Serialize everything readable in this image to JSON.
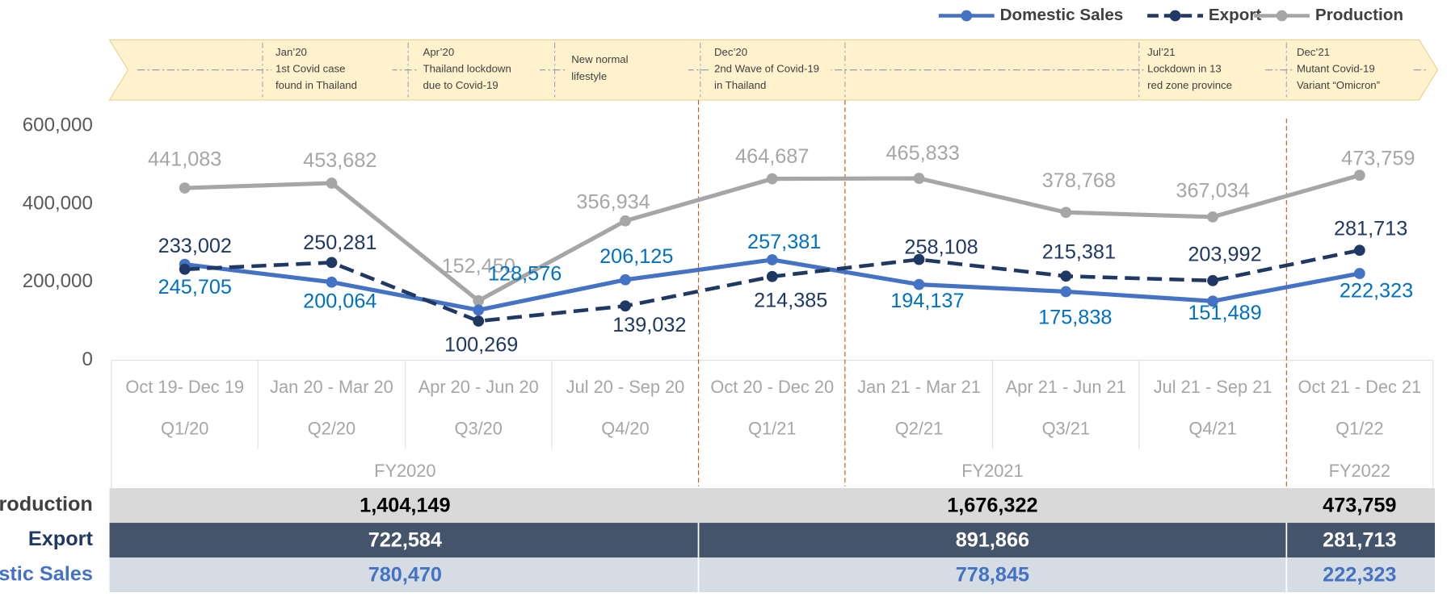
{
  "chart_data": {
    "type": "line",
    "legend": "top-right",
    "grid": false,
    "timeline": [
      {
        "date": "Jan’20",
        "lines": [
          "1st Covid case",
          "found in Thailand"
        ]
      },
      {
        "date": "Apr’20",
        "lines": [
          "Thailand lockdown",
          "due to Covid-19"
        ]
      },
      {
        "date": "New normal",
        "lines": [
          "lifestyle"
        ]
      },
      {
        "date": "Dec’20",
        "lines": [
          "2nd Wave of Covid-19",
          "in Thailand"
        ]
      },
      {
        "date": "Jul’21",
        "lines": [
          "Lockdown in 13",
          "red zone province"
        ]
      },
      {
        "date": "Dec’21",
        "lines": [
          "Mutant Covid-19",
          "Variant “Omicron”"
        ]
      }
    ],
    "categories": [
      "Oct 19- Dec 19",
      "Jan 20 - Mar 20",
      "Apr 20 - Jun 20",
      "Jul 20 - Sep 20",
      "Oct 20 - Dec 20",
      "Jan 21 - Mar 21",
      "Apr 21 - Jun 21",
      "Jul 21 - Sep 21",
      "Oct 21 - Dec 21"
    ],
    "quarters": [
      "Q1/20",
      "Q2/20",
      "Q3/20",
      "Q4/20",
      "Q1/21",
      "Q2/21",
      "Q3/21",
      "Q4/21",
      "Q1/22"
    ],
    "fiscal_years": [
      "FY2020",
      "FY2021",
      "FY2022"
    ],
    "ylim": [
      0,
      600000
    ],
    "yticks": [
      0,
      {
        "value": 200000,
        "label": "200,000"
      },
      {
        "value": 400000,
        "label": "400,000"
      },
      {
        "value": 600000,
        "label": "600,000"
      }
    ],
    "series": [
      {
        "name": "Domestic Sales",
        "color": "#4472c4",
        "label_color": "#0070c0",
        "dash": "solid",
        "values": [
          245705,
          200064,
          128576,
          206125,
          257381,
          194137,
          175838,
          151489,
          222323
        ],
        "value_labels": [
          "245,705",
          "200,064",
          "128,576",
          "206,125",
          "257,381",
          "194,137",
          "175,838",
          "151,489",
          "222,323"
        ]
      },
      {
        "name": "Export",
        "color": "#203864",
        "label_color": "#1f3864",
        "dash": "dashed",
        "values": [
          233002,
          250281,
          100269,
          139032,
          214385,
          258108,
          215381,
          203992,
          281713
        ],
        "value_labels": [
          "233,002",
          "250,281",
          "100,269",
          "139,032",
          "214,385",
          "258,108",
          "215,381",
          "203,992",
          "281,713"
        ]
      },
      {
        "name": "Production",
        "color": "#a6a6a6",
        "label_color": "#a6a6a6",
        "dash": "solid",
        "values": [
          441083,
          453682,
          152450,
          356934,
          464687,
          465833,
          378768,
          367034,
          473759
        ],
        "value_labels": [
          "441,083",
          "453,682",
          "152,450",
          "356,934",
          "464,687",
          "465,833",
          "378,768",
          "367,034",
          "473,759"
        ]
      }
    ],
    "table": {
      "rows": [
        {
          "label": "Production",
          "values": [
            "1,404,149",
            "1,676,322",
            "473,759"
          ]
        },
        {
          "label": "Export",
          "values": [
            "722,584",
            "891,866",
            "281,713"
          ]
        },
        {
          "label": "Domestic Sales",
          "values": [
            "780,470",
            "778,845",
            "222,323"
          ]
        }
      ]
    }
  }
}
